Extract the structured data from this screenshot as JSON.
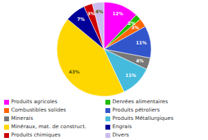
{
  "chart_data": {
    "type": "pie",
    "categories": [
      "Produits agricoles",
      "Denrées alimentaires",
      "Combustibles solides",
      "Produits pétroliers",
      "Minerais",
      "Produits Métallurgiques",
      "Minéraux, mat. de construct.",
      "Engrais",
      "Produits chimiques",
      "Divers"
    ],
    "values": [
      12,
      2,
      3,
      11,
      4,
      11,
      43,
      7,
      3,
      4
    ],
    "value_labels": [
      "12%",
      "2%",
      "3%",
      "11%",
      "4%",
      "11%",
      "43%",
      "7%",
      "3%",
      "4%"
    ],
    "colors": [
      "#FF00FF",
      "#22BB00",
      "#FF6600",
      "#3355CC",
      "#777777",
      "#44BBDD",
      "#FFD700",
      "#000099",
      "#CC0000",
      "#CCBBEE"
    ],
    "data_labels": true,
    "legend": "lower left"
  }
}
